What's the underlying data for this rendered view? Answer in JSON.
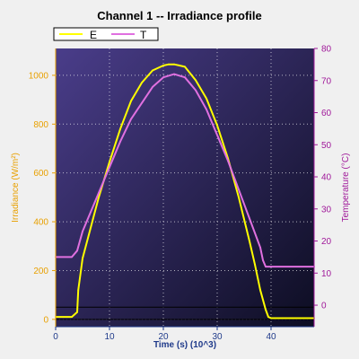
{
  "chart_data": {
    "type": "line",
    "title": "Channel 1 -- Irradiance profile",
    "xlabel": "Time (s) (10^3)",
    "ylabel_left": "Irradiance (W/m²)",
    "ylabel_right": "Temperature (°C)",
    "xlim": [
      0,
      48
    ],
    "ylim_left": [
      -30,
      1110
    ],
    "ylim_right": [
      -6.7,
      80
    ],
    "x_ticks": [
      0,
      10,
      20,
      30,
      40
    ],
    "y_left_ticks": [
      0,
      200,
      400,
      600,
      800,
      1000
    ],
    "y_right_ticks": [
      0,
      10,
      20,
      30,
      40,
      50,
      60,
      70,
      80
    ],
    "grid": true,
    "legend_position": "top-left",
    "colors": {
      "E": "#ffff00",
      "T": "#e070e0",
      "left_axis": "#e8a000",
      "right_axis": "#a0199a",
      "plot_bg_light": "#4a3d8a",
      "plot_bg_dark": "#0d0d22"
    },
    "series": [
      {
        "name": "E",
        "axis": "left",
        "x": [
          0,
          3,
          4,
          4.2,
          5,
          8,
          10,
          12,
          14,
          16,
          18,
          20,
          21,
          22,
          23,
          24,
          26,
          28,
          30,
          32,
          34,
          36,
          37,
          38,
          39,
          39.5,
          40,
          48
        ],
        "values": [
          10,
          10,
          30,
          120,
          250,
          500,
          645,
          780,
          895,
          970,
          1020,
          1040,
          1045,
          1045,
          1040,
          1035,
          980,
          905,
          795,
          660,
          500,
          320,
          225,
          120,
          40,
          10,
          5,
          5
        ]
      },
      {
        "name": "T",
        "axis": "right",
        "x": [
          0,
          3,
          4,
          5,
          8,
          10,
          12,
          14,
          16,
          18,
          20,
          22,
          24,
          26,
          28,
          30,
          32,
          34,
          36,
          38,
          38.5,
          39,
          40,
          48
        ],
        "values": [
          15,
          15,
          17,
          23,
          35,
          43,
          51,
          58,
          63,
          68,
          71,
          72,
          71,
          67,
          61,
          53,
          45,
          36,
          27,
          18,
          14,
          12,
          12,
          12
        ]
      }
    ],
    "reference_lines": {
      "axis": "left",
      "values": [
        0,
        50
      ]
    }
  }
}
